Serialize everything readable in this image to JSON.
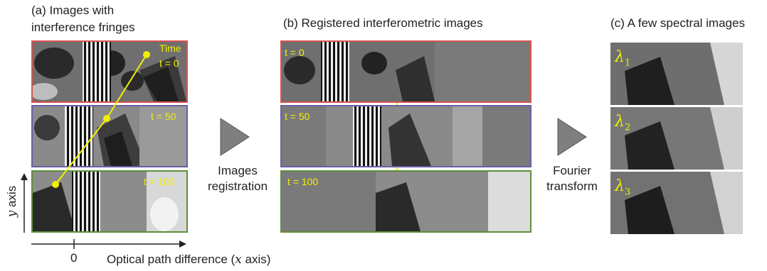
{
  "panel_a": {
    "title_line1": "(a) Images with",
    "title_line2": "interference fringes",
    "time_label": "Time",
    "frames": [
      {
        "label": "t = 0",
        "border": "#d9534f"
      },
      {
        "label": "t = 50",
        "border": "#6b5ea8"
      },
      {
        "label": "t = 100",
        "border": "#5f8f3a"
      }
    ]
  },
  "panel_b": {
    "title": "(b) Registered interferometric images",
    "frames": [
      {
        "label": "t = 0",
        "border": "#d9534f"
      },
      {
        "label": "t = 50",
        "border": "#6b5ea8"
      },
      {
        "label": "t = 100",
        "border": "#5f8f3a"
      }
    ]
  },
  "panel_c": {
    "title": "(c) A few spectral images",
    "lambdas": [
      {
        "symbol": "λ",
        "sub": "1"
      },
      {
        "symbol": "λ",
        "sub": "2"
      },
      {
        "symbol": "λ",
        "sub": "3"
      }
    ]
  },
  "step1": {
    "line1": "Images",
    "line2": "registration"
  },
  "step2": {
    "line1": "Fourier",
    "line2": "transform"
  },
  "axes": {
    "y_var": "y",
    "y_word": "axis",
    "zero": "0",
    "x_text": "Optical path difference (",
    "x_var": "x",
    "x_tail": " axis)"
  },
  "colors": {
    "accent_yellow": "#f0f000",
    "arrow_gray": "#7f7f7f"
  }
}
